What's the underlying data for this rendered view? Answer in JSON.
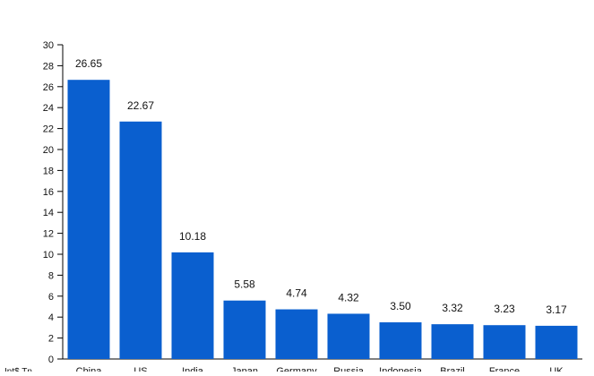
{
  "chart_data": {
    "type": "bar",
    "categories": [
      "China",
      "US",
      "India",
      "Japan",
      "Germany",
      "Russia",
      "Indonesia",
      "Brazil",
      "France",
      "UK"
    ],
    "values": [
      26.65,
      22.67,
      10.18,
      5.58,
      4.74,
      4.32,
      3.5,
      3.32,
      3.23,
      3.17
    ],
    "value_labels": [
      "26.65",
      "22.67",
      "10.18",
      "5.58",
      "4.74",
      "4.32",
      "3.50",
      "3.32",
      "3.23",
      "3.17"
    ],
    "ylim": [
      0,
      30
    ],
    "yticks": [
      0,
      2,
      4,
      6,
      8,
      10,
      12,
      14,
      16,
      18,
      20,
      22,
      24,
      26,
      28,
      30
    ],
    "ylabel": "Int$ Tn",
    "title": "",
    "xlabel": "",
    "grid": false,
    "bar_color": "#0a5fcf"
  }
}
